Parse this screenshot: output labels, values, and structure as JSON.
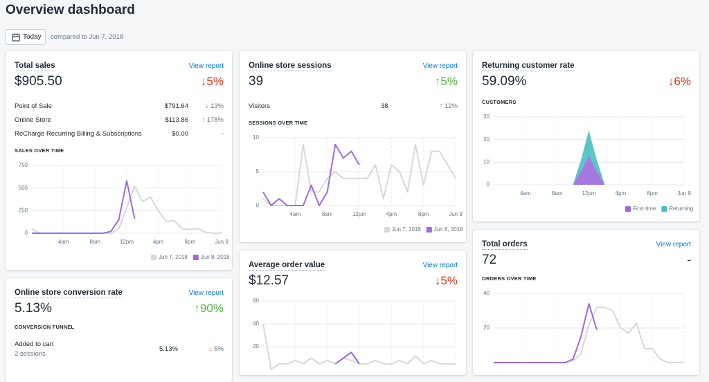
{
  "header": {
    "title": "Overview dashboard",
    "button": "Today",
    "compared": "compared to Jun 7, 2018"
  },
  "cards": {
    "total_sales": {
      "title": "Total sales",
      "link": "View report",
      "value": "$905.50",
      "change": {
        "arrow": "↓",
        "text": "5%",
        "color": "#de3618"
      },
      "rows": [
        {
          "label": "Point of Sale",
          "amount": "$791.64",
          "change": {
            "arrow": "↓",
            "text": "13%",
            "color": "#de3618"
          }
        },
        {
          "label": "Online Store",
          "amount": "$113.86",
          "change": {
            "arrow": "↑",
            "text": "178%",
            "color": "#50b83c"
          }
        },
        {
          "label": "ReCharge Recurring Billing & Subscriptions",
          "amount": "$0.00",
          "change": {
            "text": "-"
          }
        }
      ],
      "chart_title": "SALES OVER TIME",
      "chart": {
        "type": "line",
        "ylim": [
          0,
          750
        ],
        "yticks": [
          0,
          250,
          500,
          750
        ],
        "xlim": [
          0,
          24
        ],
        "xticks": [
          {
            "value": 4,
            "label": "4am"
          },
          {
            "value": 8,
            "label": "8am"
          },
          {
            "value": 12,
            "label": "12pm"
          },
          {
            "value": 16,
            "label": "4pm"
          },
          {
            "value": 20,
            "label": "8pm"
          },
          {
            "value": 24,
            "label": "Jun 9"
          }
        ],
        "x": [
          0,
          1,
          2,
          3,
          4,
          5,
          6,
          7,
          8,
          9,
          10,
          11,
          12,
          13,
          14,
          15,
          16,
          17,
          18,
          19,
          20,
          21,
          22,
          23,
          24
        ],
        "series": [
          {
            "name": "Jun 7, 2018",
            "color": "#d5d7db",
            "values": [
              50,
              0,
              0,
              0,
              0,
              0,
              0,
              0,
              0,
              0,
              0,
              50,
              280,
              520,
              350,
              400,
              250,
              130,
              140,
              50,
              40,
              50,
              10,
              0,
              0
            ]
          },
          {
            "name": "Jun 8, 2018",
            "color": "#9c6ade",
            "values": [
              0,
              0,
              0,
              0,
              0,
              0,
              0,
              0,
              0,
              0,
              20,
              150,
              580,
              160,
              null,
              null,
              null,
              null,
              null,
              null,
              null,
              null,
              null,
              null,
              null
            ]
          }
        ]
      }
    },
    "conversion": {
      "title": "Online store conversion rate",
      "link": "View report",
      "value": "5.13%",
      "change": {
        "arrow": "↑",
        "text": "90%",
        "color": "#50b83c"
      },
      "section": "CONVERSION FUNNEL",
      "rows": [
        {
          "label": "Added to cart",
          "sub": "2 sessions",
          "amount": "5.13%",
          "change": {
            "arrow": "↓",
            "text": "5%",
            "color": "#de3618"
          }
        }
      ]
    },
    "sessions": {
      "title": "Online store sessions",
      "link": "View report",
      "value": "39",
      "change": {
        "arrow": "↑",
        "text": "5%",
        "color": "#50b83c"
      },
      "rows": [
        {
          "label": "Visitors",
          "amount": "38",
          "change": {
            "arrow": "↑",
            "text": "12%",
            "color": "#50b83c"
          }
        }
      ],
      "chart_title": "SESSIONS OVER TIME",
      "chart": {
        "type": "line",
        "ylim": [
          0,
          10
        ],
        "yticks": [
          0,
          5,
          10
        ],
        "xlim": [
          0,
          24
        ],
        "xticks": [
          {
            "value": 4,
            "label": "4am"
          },
          {
            "value": 8,
            "label": "8am"
          },
          {
            "value": 12,
            "label": "12pm"
          },
          {
            "value": 16,
            "label": "4pm"
          },
          {
            "value": 20,
            "label": "8pm"
          },
          {
            "value": 24,
            "label": "Jun 9"
          }
        ],
        "x": [
          0,
          1,
          2,
          3,
          4,
          5,
          6,
          7,
          8,
          9,
          10,
          11,
          12,
          13,
          14,
          15,
          16,
          17,
          18,
          19,
          20,
          21,
          22,
          23,
          24
        ],
        "series": [
          {
            "name": "Jun 7, 2018",
            "color": "#d5d7db",
            "values": [
              1,
              0,
              0,
              0,
              0,
              9,
              2,
              2,
              4,
              5,
              4,
              4,
              4,
              4,
              6,
              1,
              6,
              5,
              2,
              9,
              3,
              8,
              8,
              6,
              4
            ]
          },
          {
            "name": "Jun 8, 2018",
            "color": "#9c6ade",
            "values": [
              2,
              0,
              1,
              0,
              0,
              0,
              3,
              0,
              2,
              9,
              7,
              8,
              6,
              null,
              null,
              null,
              null,
              null,
              null,
              null,
              null,
              null,
              null,
              null,
              null
            ]
          }
        ]
      }
    },
    "avg_order": {
      "title": "Average order value",
      "link": "View report",
      "value": "$12.57",
      "change": {
        "arrow": "↓",
        "text": "5%",
        "color": "#de3618"
      },
      "chart": {
        "type": "line",
        "ylim": [
          0,
          60
        ],
        "yticks": [
          20,
          40,
          60
        ],
        "xlim": [
          0,
          24
        ],
        "xticks": [
          {
            "value": 4
          },
          {
            "value": 8
          },
          {
            "value": 12
          },
          {
            "value": 16
          },
          {
            "value": 20
          },
          {
            "value": 24
          }
        ],
        "x": [
          0,
          1,
          2,
          3,
          4,
          5,
          6,
          7,
          8,
          9,
          10,
          11,
          12,
          13,
          14,
          15,
          16,
          17,
          18,
          19,
          20,
          21,
          22,
          23,
          24
        ],
        "series": [
          {
            "name": "Jun 7, 2018",
            "color": "#d5d7db",
            "values": [
              40,
              0,
              5,
              5,
              8,
              5,
              10,
              5,
              8,
              5,
              10,
              8,
              5,
              5,
              8,
              5,
              5,
              8,
              5,
              12,
              5,
              8,
              5,
              5,
              5
            ]
          },
          {
            "name": "Jun 8, 2018",
            "color": "#9c6ade",
            "values": [
              null,
              null,
              null,
              null,
              null,
              null,
              null,
              null,
              null,
              5,
              10,
              15,
              5,
              null,
              null,
              null,
              null,
              null,
              null,
              null,
              null,
              null,
              null,
              null,
              null
            ]
          }
        ]
      }
    },
    "returning": {
      "title": "Returning customer rate",
      "value": "59.09%",
      "change": {
        "arrow": "↓",
        "text": "6%",
        "color": "#de3618"
      },
      "chart_title": "CUSTOMERS",
      "chart": {
        "type": "area",
        "ylim": [
          0,
          30
        ],
        "yticks": [
          0,
          10,
          20,
          30
        ],
        "xlim": [
          0,
          24
        ],
        "xticks": [
          {
            "value": 4,
            "label": "4am"
          },
          {
            "value": 8,
            "label": "8am"
          },
          {
            "value": 12,
            "label": "12pm"
          },
          {
            "value": 16,
            "label": "4pm"
          },
          {
            "value": 20,
            "label": "8pm"
          },
          {
            "value": 24,
            "label": "Jun 9"
          }
        ],
        "x": [
          0,
          1,
          2,
          3,
          4,
          5,
          6,
          7,
          8,
          9,
          10,
          11,
          12,
          13,
          14,
          15,
          16,
          17,
          18,
          19,
          20,
          21,
          22,
          23,
          24
        ],
        "series": [
          {
            "name": "First-time",
            "color": "#9c6ade",
            "values": [
              0,
              0,
              0,
              0,
              0,
              0,
              0,
              0,
              0,
              0,
              0,
              6,
              13,
              6,
              0,
              0,
              0,
              0,
              0,
              0,
              0,
              0,
              0,
              0,
              0
            ]
          },
          {
            "name": "Returning",
            "color": "#47c1bf",
            "values": [
              0,
              0,
              0,
              0,
              0,
              0,
              0,
              0,
              0,
              0,
              0,
              5,
              11,
              5,
              0,
              0,
              0,
              0,
              0,
              0,
              0,
              0,
              0,
              0,
              0
            ]
          }
        ]
      }
    },
    "orders": {
      "title": "Total orders",
      "link": "View report",
      "value": "72",
      "change": {
        "text": "-"
      },
      "chart_title": "ORDERS OVER TIME",
      "chart": {
        "type": "line",
        "ylim": [
          0,
          40
        ],
        "yticks": [
          20,
          40
        ],
        "xlim": [
          0,
          24
        ],
        "xticks": [
          {
            "value": 4
          },
          {
            "value": 8
          },
          {
            "value": 12
          },
          {
            "value": 16
          },
          {
            "value": 20
          },
          {
            "value": 24
          }
        ],
        "x": [
          0,
          1,
          2,
          3,
          4,
          5,
          6,
          7,
          8,
          9,
          10,
          11,
          12,
          13,
          14,
          15,
          16,
          17,
          18,
          19,
          20,
          21,
          22,
          23,
          24
        ],
        "series": [
          {
            "name": "Jun 7, 2018",
            "color": "#d5d7db",
            "values": [
              0,
              0,
              0,
              0,
              0,
              0,
              0,
              0,
              0,
              0,
              1,
              5,
              22,
              32,
              32,
              30,
              20,
              17,
              23,
              8,
              8,
              2,
              0,
              0,
              0
            ]
          },
          {
            "name": "Jun 8, 2018",
            "color": "#9c6ade",
            "values": [
              0,
              0,
              0,
              0,
              0,
              0,
              0,
              0,
              0,
              0,
              2,
              15,
              34,
              19,
              null,
              null,
              null,
              null,
              null,
              null,
              null,
              null,
              null,
              null,
              null
            ]
          }
        ]
      }
    }
  }
}
